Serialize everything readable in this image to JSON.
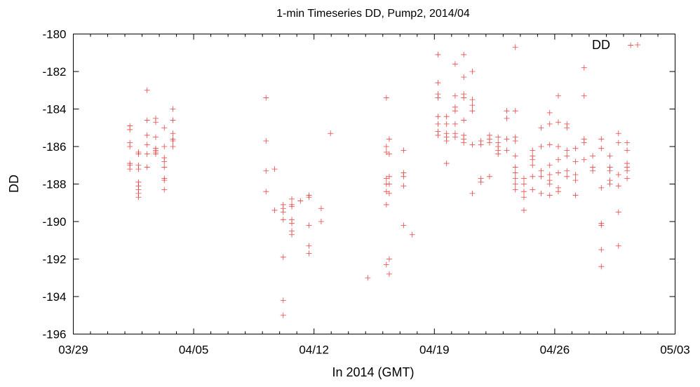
{
  "chart_data": {
    "type": "scatter",
    "title": "1-min Timeseries DD, Pump2, 2014/04",
    "xlabel": "In 2014 (GMT)",
    "ylabel": "DD",
    "xlim": [
      "2014-03-29",
      "2014-05-03"
    ],
    "ylim": [
      -196,
      -180
    ],
    "x_ticks": [
      "03/29",
      "04/05",
      "04/12",
      "04/19",
      "04/26",
      "05/03"
    ],
    "y_ticks": [
      "-196",
      "-194",
      "-192",
      "-190",
      "-188",
      "-186",
      "-184",
      "-182",
      "-180"
    ],
    "grid": false,
    "legend_position": "top-right",
    "marker": "plus",
    "color": "#e32626",
    "series": [
      {
        "name": "DD",
        "points": [
          [
            "2014-04-01T07:00",
            -184.9
          ],
          [
            "2014-04-01T07:00",
            -185.1
          ],
          [
            "2014-04-01T07:00",
            -185.8
          ],
          [
            "2014-04-01T07:00",
            -186.0
          ],
          [
            "2014-04-01T07:00",
            -186.9
          ],
          [
            "2014-04-01T07:00",
            -187.0
          ],
          [
            "2014-04-01T07:00",
            -187.2
          ],
          [
            "2014-04-01T19:00",
            -186.3
          ],
          [
            "2014-04-01T19:00",
            -186.4
          ],
          [
            "2014-04-01T19:00",
            -187.0
          ],
          [
            "2014-04-01T19:00",
            -187.2
          ],
          [
            "2014-04-01T19:00",
            -187.9
          ],
          [
            "2014-04-01T19:00",
            -188.1
          ],
          [
            "2014-04-01T19:00",
            -188.3
          ],
          [
            "2014-04-01T19:00",
            -188.5
          ],
          [
            "2014-04-01T19:00",
            -188.7
          ],
          [
            "2014-04-02T07:00",
            -183.0
          ],
          [
            "2014-04-02T07:00",
            -184.6
          ],
          [
            "2014-04-02T07:00",
            -185.4
          ],
          [
            "2014-04-02T07:00",
            -185.9
          ],
          [
            "2014-04-02T07:00",
            -186.4
          ],
          [
            "2014-04-02T07:00",
            -187.1
          ],
          [
            "2014-04-02T19:00",
            -184.5
          ],
          [
            "2014-04-02T19:00",
            -184.7
          ],
          [
            "2014-04-02T19:00",
            -185.5
          ],
          [
            "2014-04-02T19:00",
            -186.1
          ],
          [
            "2014-04-02T19:00",
            -186.3
          ],
          [
            "2014-04-02T19:00",
            -186.4
          ],
          [
            "2014-04-02T19:00",
            -186.2
          ],
          [
            "2014-04-03T07:00",
            -185.0
          ],
          [
            "2014-04-03T07:00",
            -186.0
          ],
          [
            "2014-04-03T07:00",
            -186.6
          ],
          [
            "2014-04-03T07:00",
            -186.8
          ],
          [
            "2014-04-03T07:00",
            -187.1
          ],
          [
            "2014-04-03T07:00",
            -187.7
          ],
          [
            "2014-04-03T07:00",
            -187.8
          ],
          [
            "2014-04-03T07:00",
            -188.3
          ],
          [
            "2014-04-03T19:00",
            -184.0
          ],
          [
            "2014-04-03T19:00",
            -184.6
          ],
          [
            "2014-04-03T19:00",
            -185.3
          ],
          [
            "2014-04-03T19:00",
            -185.6
          ],
          [
            "2014-04-03T19:00",
            -185.7
          ],
          [
            "2014-04-03T19:00",
            -186.0
          ],
          [
            "2014-04-09T05:00",
            -183.4
          ],
          [
            "2014-04-09T05:00",
            -185.7
          ],
          [
            "2014-04-09T05:00",
            -187.3
          ],
          [
            "2014-04-09T05:00",
            -188.4
          ],
          [
            "2014-04-09T17:00",
            -187.2
          ],
          [
            "2014-04-09T17:00",
            -189.4
          ],
          [
            "2014-04-10T05:00",
            -189.1
          ],
          [
            "2014-04-10T05:00",
            -189.3
          ],
          [
            "2014-04-10T05:00",
            -189.5
          ],
          [
            "2014-04-10T05:00",
            -189.9
          ],
          [
            "2014-04-10T05:00",
            -191.9
          ],
          [
            "2014-04-10T05:00",
            -194.2
          ],
          [
            "2014-04-10T05:00",
            -195.0
          ],
          [
            "2014-04-10T17:00",
            -188.8
          ],
          [
            "2014-04-10T17:00",
            -189.1
          ],
          [
            "2014-04-10T17:00",
            -189.2
          ],
          [
            "2014-04-10T17:00",
            -189.9
          ],
          [
            "2014-04-10T17:00",
            -190.1
          ],
          [
            "2014-04-10T17:00",
            -190.5
          ],
          [
            "2014-04-10T17:00",
            -190.7
          ],
          [
            "2014-04-11T05:00",
            -188.9
          ],
          [
            "2014-04-11T17:00",
            -188.6
          ],
          [
            "2014-04-11T17:00",
            -188.7
          ],
          [
            "2014-04-11T17:00",
            -190.2
          ],
          [
            "2014-04-11T17:00",
            -191.3
          ],
          [
            "2014-04-11T17:00",
            -191.7
          ],
          [
            "2014-04-12T10:00",
            -189.3
          ],
          [
            "2014-04-12T10:00",
            -190.0
          ],
          [
            "2014-04-12T23:00",
            -185.3
          ],
          [
            "2014-04-15T03:00",
            -193.0
          ],
          [
            "2014-04-16T05:00",
            -183.4
          ],
          [
            "2014-04-16T05:00",
            -186.0
          ],
          [
            "2014-04-16T05:00",
            -186.3
          ],
          [
            "2014-04-16T05:00",
            -187.7
          ],
          [
            "2014-04-16T05:00",
            -188.0
          ],
          [
            "2014-04-16T05:00",
            -188.4
          ],
          [
            "2014-04-16T05:00",
            -189.1
          ],
          [
            "2014-04-16T05:00",
            -192.3
          ],
          [
            "2014-04-16T09:00",
            -185.6
          ],
          [
            "2014-04-16T09:00",
            -186.4
          ],
          [
            "2014-04-16T09:00",
            -187.6
          ],
          [
            "2014-04-16T09:00",
            -188.0
          ],
          [
            "2014-04-16T09:00",
            -188.5
          ],
          [
            "2014-04-16T09:00",
            -192.0
          ],
          [
            "2014-04-16T09:00",
            -192.8
          ],
          [
            "2014-04-17T05:00",
            -186.2
          ],
          [
            "2014-04-17T05:00",
            -187.4
          ],
          [
            "2014-04-17T05:00",
            -187.6
          ],
          [
            "2014-04-17T05:00",
            -188.1
          ],
          [
            "2014-04-17T05:00",
            -190.2
          ],
          [
            "2014-04-17T17:00",
            -190.7
          ],
          [
            "2014-04-19T05:00",
            -181.1
          ],
          [
            "2014-04-19T05:00",
            -182.6
          ],
          [
            "2014-04-19T05:00",
            -183.2
          ],
          [
            "2014-04-19T05:00",
            -183.4
          ],
          [
            "2014-04-19T05:00",
            -184.4
          ],
          [
            "2014-04-19T05:00",
            -184.8
          ],
          [
            "2014-04-19T05:00",
            -185.2
          ],
          [
            "2014-04-19T05:00",
            -185.4
          ],
          [
            "2014-04-19T17:00",
            -184.4
          ],
          [
            "2014-04-19T17:00",
            -184.8
          ],
          [
            "2014-04-19T17:00",
            -185.3
          ],
          [
            "2014-04-19T17:00",
            -185.5
          ],
          [
            "2014-04-19T17:00",
            -185.7
          ],
          [
            "2014-04-19T17:00",
            -186.9
          ],
          [
            "2014-04-20T05:00",
            -181.6
          ],
          [
            "2014-04-20T05:00",
            -183.3
          ],
          [
            "2014-04-20T05:00",
            -183.9
          ],
          [
            "2014-04-20T05:00",
            -184.1
          ],
          [
            "2014-04-20T05:00",
            -184.8
          ],
          [
            "2014-04-20T05:00",
            -185.3
          ],
          [
            "2014-04-20T05:00",
            -185.5
          ],
          [
            "2014-04-20T17:00",
            -181.1
          ],
          [
            "2014-04-20T17:00",
            -182.3
          ],
          [
            "2014-04-20T17:00",
            -183.2
          ],
          [
            "2014-04-20T17:00",
            -183.4
          ],
          [
            "2014-04-20T17:00",
            -184.6
          ],
          [
            "2014-04-20T17:00",
            -185.4
          ],
          [
            "2014-04-20T17:00",
            -185.6
          ],
          [
            "2014-04-20T17:00",
            -185.8
          ],
          [
            "2014-04-21T05:00",
            -182.0
          ],
          [
            "2014-04-21T05:00",
            -183.5
          ],
          [
            "2014-04-21T05:00",
            -183.8
          ],
          [
            "2014-04-21T05:00",
            -184.1
          ],
          [
            "2014-04-21T05:00",
            -185.9
          ],
          [
            "2014-04-21T05:00",
            -188.5
          ],
          [
            "2014-04-21T17:00",
            -185.7
          ],
          [
            "2014-04-21T17:00",
            -185.9
          ],
          [
            "2014-04-21T17:00",
            -187.7
          ],
          [
            "2014-04-21T17:00",
            -187.9
          ],
          [
            "2014-04-22T05:00",
            -185.4
          ],
          [
            "2014-04-22T05:00",
            -185.6
          ],
          [
            "2014-04-22T05:00",
            -185.8
          ],
          [
            "2014-04-22T05:00",
            -187.6
          ],
          [
            "2014-04-22T17:00",
            -185.5
          ],
          [
            "2014-04-22T17:00",
            -185.8
          ],
          [
            "2014-04-22T17:00",
            -186.0
          ],
          [
            "2014-04-22T17:00",
            -186.2
          ],
          [
            "2014-04-22T17:00",
            -186.4
          ],
          [
            "2014-04-23T05:00",
            -184.1
          ],
          [
            "2014-04-23T05:00",
            -184.5
          ],
          [
            "2014-04-23T05:00",
            -185.6
          ],
          [
            "2014-04-23T05:00",
            -186.2
          ],
          [
            "2014-04-23T17:00",
            -180.7
          ],
          [
            "2014-04-23T17:00",
            -184.1
          ],
          [
            "2014-04-23T17:00",
            -185.5
          ],
          [
            "2014-04-23T17:00",
            -185.7
          ],
          [
            "2014-04-23T17:00",
            -186.5
          ],
          [
            "2014-04-23T17:00",
            -187.1
          ],
          [
            "2014-04-23T17:00",
            -187.4
          ],
          [
            "2014-04-23T17:00",
            -187.7
          ],
          [
            "2014-04-23T17:00",
            -188.0
          ],
          [
            "2014-04-23T17:00",
            -188.3
          ],
          [
            "2014-04-24T05:00",
            -187.7
          ],
          [
            "2014-04-24T05:00",
            -188.0
          ],
          [
            "2014-04-24T05:00",
            -188.4
          ],
          [
            "2014-04-24T05:00",
            -188.7
          ],
          [
            "2014-04-24T05:00",
            -189.4
          ],
          [
            "2014-04-24T17:00",
            -186.2
          ],
          [
            "2014-04-24T17:00",
            -186.5
          ],
          [
            "2014-04-24T17:00",
            -186.7
          ],
          [
            "2014-04-24T17:00",
            -187.0
          ],
          [
            "2014-04-24T17:00",
            -187.6
          ],
          [
            "2014-04-24T17:00",
            -188.3
          ],
          [
            "2014-04-25T05:00",
            -185.0
          ],
          [
            "2014-04-25T05:00",
            -186.0
          ],
          [
            "2014-04-25T05:00",
            -187.3
          ],
          [
            "2014-04-25T05:00",
            -187.6
          ],
          [
            "2014-04-25T05:00",
            -188.5
          ],
          [
            "2014-04-25T17:00",
            -184.2
          ],
          [
            "2014-04-25T17:00",
            -184.8
          ],
          [
            "2014-04-25T17:00",
            -185.9
          ],
          [
            "2014-04-25T17:00",
            -187.0
          ],
          [
            "2014-04-25T17:00",
            -187.5
          ],
          [
            "2014-04-25T17:00",
            -187.8
          ],
          [
            "2014-04-25T17:00",
            -188.0
          ],
          [
            "2014-04-25T17:00",
            -188.6
          ],
          [
            "2014-04-26T05:00",
            -183.3
          ],
          [
            "2014-04-26T05:00",
            -184.7
          ],
          [
            "2014-04-26T05:00",
            -186.0
          ],
          [
            "2014-04-26T05:00",
            -186.7
          ],
          [
            "2014-04-26T05:00",
            -187.4
          ],
          [
            "2014-04-26T05:00",
            -188.2
          ],
          [
            "2014-04-26T05:00",
            -188.4
          ],
          [
            "2014-04-26T17:00",
            -184.8
          ],
          [
            "2014-04-26T17:00",
            -185.0
          ],
          [
            "2014-04-26T17:00",
            -186.2
          ],
          [
            "2014-04-26T17:00",
            -186.5
          ],
          [
            "2014-04-26T17:00",
            -187.3
          ],
          [
            "2014-04-26T17:00",
            -187.6
          ],
          [
            "2014-04-27T05:00",
            -186.1
          ],
          [
            "2014-04-27T05:00",
            -186.8
          ],
          [
            "2014-04-27T05:00",
            -187.5
          ],
          [
            "2014-04-27T05:00",
            -187.8
          ],
          [
            "2014-04-27T05:00",
            -188.6
          ],
          [
            "2014-04-27T17:00",
            -181.8
          ],
          [
            "2014-04-27T17:00",
            -183.3
          ],
          [
            "2014-04-27T17:00",
            -185.6
          ],
          [
            "2014-04-27T17:00",
            -185.8
          ],
          [
            "2014-04-27T17:00",
            -186.7
          ],
          [
            "2014-04-28T05:00",
            -186.5
          ],
          [
            "2014-04-28T05:00",
            -187.1
          ],
          [
            "2014-04-28T05:00",
            -187.3
          ],
          [
            "2014-04-28T17:00",
            -185.6
          ],
          [
            "2014-04-28T17:00",
            -186.1
          ],
          [
            "2014-04-28T17:00",
            -188.2
          ],
          [
            "2014-04-28T17:00",
            -190.1
          ],
          [
            "2014-04-28T17:00",
            -190.2
          ],
          [
            "2014-04-28T17:00",
            -191.5
          ],
          [
            "2014-04-28T17:00",
            -192.4
          ],
          [
            "2014-04-29T05:00",
            -186.5
          ],
          [
            "2014-04-29T05:00",
            -187.1
          ],
          [
            "2014-04-29T05:00",
            -187.3
          ],
          [
            "2014-04-29T05:00",
            -187.8
          ],
          [
            "2014-04-29T05:00",
            -188.0
          ],
          [
            "2014-04-29T17:00",
            -185.3
          ],
          [
            "2014-04-29T17:00",
            -185.8
          ],
          [
            "2014-04-29T17:00",
            -187.5
          ],
          [
            "2014-04-29T17:00",
            -188.1
          ],
          [
            "2014-04-29T17:00",
            -189.5
          ],
          [
            "2014-04-29T17:00",
            -191.3
          ],
          [
            "2014-04-30T05:00",
            -185.8
          ],
          [
            "2014-04-30T05:00",
            -186.2
          ],
          [
            "2014-04-30T05:00",
            -186.9
          ],
          [
            "2014-04-30T05:00",
            -187.1
          ],
          [
            "2014-04-30T05:00",
            -187.3
          ],
          [
            "2014-04-30T05:00",
            -187.7
          ],
          [
            "2014-04-30T10:00",
            -180.6
          ]
        ]
      }
    ]
  }
}
